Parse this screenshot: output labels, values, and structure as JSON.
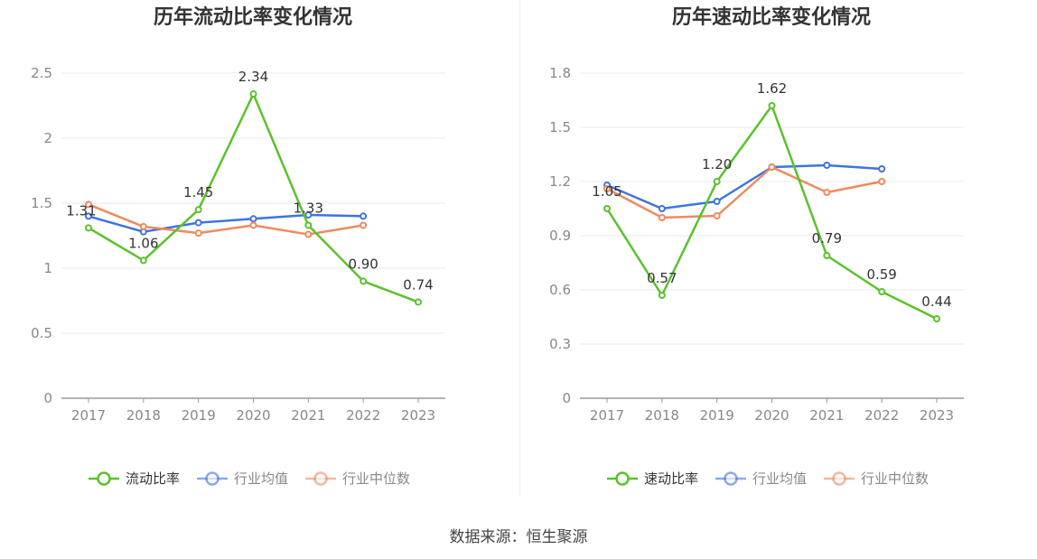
{
  "footer": {
    "source": "数据来源：恒生聚源"
  },
  "chart_data": [
    {
      "type": "line",
      "title": "历年流动比率变化情况",
      "categories": [
        "2017",
        "2018",
        "2019",
        "2020",
        "2021",
        "2022",
        "2023"
      ],
      "ylim": [
        0,
        2.5
      ],
      "yticks": [
        "0",
        "0.5",
        "1",
        "1.5",
        "2",
        "2.5"
      ],
      "ytick_values": [
        0,
        0.5,
        1,
        1.5,
        2,
        2.5
      ],
      "grid": true,
      "legend_position": "bottom",
      "series": [
        {
          "name": "流动比率",
          "color": "#5ac22c",
          "values": [
            1.31,
            1.06,
            1.45,
            2.34,
            1.33,
            0.9,
            0.74
          ],
          "labels": [
            "1.31",
            "1.06",
            "1.45",
            "2.34",
            "1.33",
            "0.90",
            "0.74"
          ]
        },
        {
          "name": "行业均值",
          "color": "#3f73e0",
          "values": [
            1.4,
            1.28,
            1.35,
            1.38,
            1.41,
            1.4,
            null
          ]
        },
        {
          "name": "行业中位数",
          "color": "#f08a5d",
          "values": [
            1.49,
            1.32,
            1.27,
            1.33,
            1.26,
            1.33,
            null
          ]
        }
      ]
    },
    {
      "type": "line",
      "title": "历年速动比率变化情况",
      "categories": [
        "2017",
        "2018",
        "2019",
        "2020",
        "2021",
        "2022",
        "2023"
      ],
      "ylim": [
        0,
        1.8
      ],
      "yticks": [
        "0",
        "0.3",
        "0.6",
        "0.9",
        "1.2",
        "1.5",
        "1.8"
      ],
      "ytick_values": [
        0,
        0.3,
        0.6,
        0.9,
        1.2,
        1.5,
        1.8
      ],
      "grid": true,
      "legend_position": "bottom",
      "series": [
        {
          "name": "速动比率",
          "color": "#5ac22c",
          "values": [
            1.05,
            0.57,
            1.2,
            1.62,
            0.79,
            0.59,
            0.44
          ],
          "labels": [
            "1.05",
            "0.57",
            "1.20",
            "1.62",
            "0.79",
            "0.59",
            "0.44"
          ]
        },
        {
          "name": "行业均值",
          "color": "#3f73e0",
          "values": [
            1.18,
            1.05,
            1.09,
            1.28,
            1.29,
            1.27,
            null
          ]
        },
        {
          "name": "行业中位数",
          "color": "#f08a5d",
          "values": [
            1.16,
            1.0,
            1.01,
            1.28,
            1.14,
            1.2,
            null
          ]
        }
      ]
    }
  ]
}
